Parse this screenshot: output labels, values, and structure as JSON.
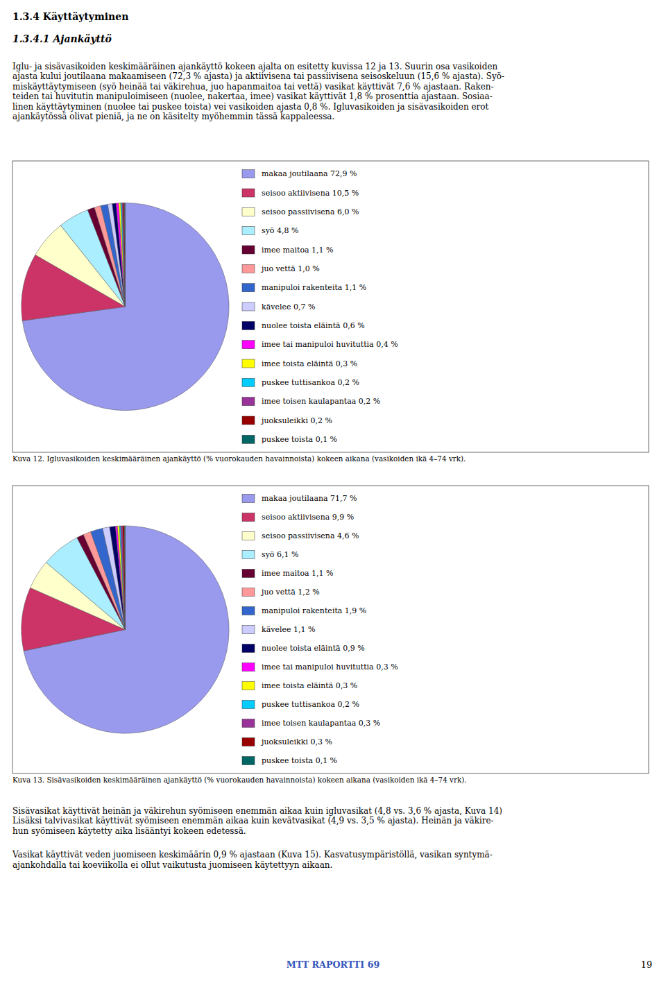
{
  "header_text": "1.3.4  Käyttäytyminen",
  "subheader_text": "1.3.4.1  Ajankäyttö",
  "body_text1_lines": [
    "Iglu- ja sisävasikoiden keskimääräinen ajankäyttö kokeen ajalta on esitetty kuvissa 12 ja 13. Suurin osa vasikoiden",
    "ajasta kului joutilaana makaamiseen (72,3 % ajasta) ja aktiivisena tai passiivisena seisoskeluun (15,6 % ajasta). Syö-",
    "miskäyttäytymiseen (syö heinää tai väkirehua, juo hapanmaitoa tai vettä) vasikat käyttivät 7,6 % ajastaan. Raken-",
    "teiden tai huvitutin manipuloimiseen (nuolee, nakertaa, imee) vasikat käyttivät 1,8 % prosenttia ajastaan. Sosiaa-",
    "linen käyttäytyminen (nuolee tai puskee toista) vei vasikoiden ajasta 0,8 %. Igluvasikoiden ja sisävasikoiden erot",
    "ajankäytössä olivat pieniä, ja ne on käsitelty myöhemmin tässä kappaleessa."
  ],
  "body_text2_lines": [
    "Sisävasikat käyttivät heinän ja väkirehun syömiseen enemmän aikaa kuin igluvasikat (4,8 vs. 3,6 % ajasta, Kuva 14)",
    "Lisäksi talvivasikat käyttivät syömiseen enemmän aikaa kuin kevätvasikat (4,9 vs. 3,5 % ajasta). Heinän ja väkire-",
    "hun syömiseen käytetty aika lisääntyi kokeen edetessä."
  ],
  "body_text3_lines": [
    "Vasikat käyttivät veden juomiseen keskimäärin 0,9 % ajastaan (Kuva 15). Kasvatusympäristöllä, vasikan syntymä-",
    "ajankohdalla tai koeviikolla ei ollut vaikutusta juomiseen käytettyyn aikaan."
  ],
  "footer_text": "MTT RAPORTTI 69",
  "footer_page": "19",
  "footer_color": "#3355BB",
  "chart_data": [
    {
      "type": "pie",
      "title": "Kuva 12. Igluvasikoiden keskimääräinen ajankäyttö (% vuorokauden havainnoista) kokeen aikana (vasikoiden ikä 4–74 vrk).",
      "categories": [
        "makaa joutilaana 72,9 %",
        "seisoo aktiivisena 10,5 %",
        "seisoo passiivisena 6,0 %",
        "syö 4,8 %",
        "imee maitoa 1,1 %",
        "juo vettä 1,0 %",
        "manipuloi rakenteita 1,1 %",
        "kävelee 0,7 %",
        "nuolee toista eläintä 0,6 %",
        "imee tai manipuloi huvituttia 0,4 %",
        "imee toista eläintä 0,3 %",
        "puskee tuttisankoa 0,2 %",
        "imee toisen kaulapantaa 0,2 %",
        "juoksuleikki 0,2 %",
        "puskee toista 0,1 %"
      ],
      "values": [
        72.9,
        10.5,
        6.0,
        4.8,
        1.1,
        1.0,
        1.1,
        0.7,
        0.6,
        0.4,
        0.3,
        0.2,
        0.2,
        0.2,
        0.1
      ],
      "colors": [
        "#9999EE",
        "#CC3366",
        "#FFFFCC",
        "#AAEEFF",
        "#660033",
        "#FF9999",
        "#3366CC",
        "#CCCCFF",
        "#000066",
        "#FF00FF",
        "#FFFF00",
        "#00CCFF",
        "#993399",
        "#990000",
        "#006666"
      ],
      "legend": "right"
    },
    {
      "type": "pie",
      "title": "Kuva 13. Sisävasikoiden keskimääräinen ajankäyttö (% vuorokauden havainnoista) kokeen aikana (vasikoiden ikä 4–74 vrk).",
      "categories": [
        "makaa joutilaana 71,7 %",
        "seisoo aktiivisena 9,9 %",
        "seisoo passiivisena 4,6 %",
        "syö 6,1 %",
        "imee maitoa 1,1 %",
        "juo vettä 1,2 %",
        "manipuloi rakenteita 1,9 %",
        "kävelee 1,1 %",
        "nuolee toista eläintä 0,9 %",
        "imee tai manipuloi huvituttia 0,3 %",
        "imee toista eläintä 0,3 %",
        "puskee tuttisankoa 0,2 %",
        "imee toisen kaulapantaa 0,3 %",
        "juoksuleikki 0,3 %",
        "puskee toista 0,1 %"
      ],
      "values": [
        71.7,
        9.9,
        4.6,
        6.1,
        1.1,
        1.2,
        1.9,
        1.1,
        0.9,
        0.3,
        0.3,
        0.2,
        0.3,
        0.3,
        0.1
      ],
      "colors": [
        "#9999EE",
        "#CC3366",
        "#FFFFCC",
        "#AAEEFF",
        "#660033",
        "#FF9999",
        "#3366CC",
        "#CCCCFF",
        "#000066",
        "#FF00FF",
        "#FFFF00",
        "#00CCFF",
        "#993399",
        "#990000",
        "#006666"
      ],
      "legend": "right"
    }
  ]
}
